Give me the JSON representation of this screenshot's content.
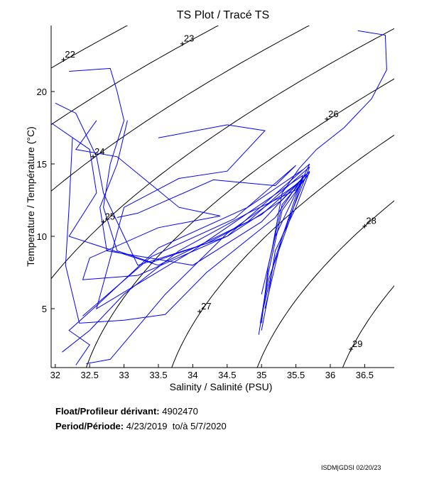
{
  "chart_data": {
    "type": "line",
    "title": "TS Plot / Tracé TS",
    "xlabel": "Salinity / Salinité (PSU)",
    "ylabel": "Temperature / Température (°C)",
    "xlim": [
      31.94,
      36.93
    ],
    "ylim": [
      0.93,
      24.56
    ],
    "xticks": [
      32,
      32.5,
      33,
      33.5,
      34,
      34.5,
      35,
      35.5,
      36,
      36.5
    ],
    "xtick_labels": [
      "32",
      "32.5",
      "33",
      "33.5",
      "34",
      "34.5",
      "35",
      "35.5",
      "36",
      "36.5"
    ],
    "yticks": [
      5,
      10,
      15,
      20
    ],
    "ytick_labels": [
      "5",
      "10",
      "15",
      "20"
    ],
    "grid": false,
    "density_contours": {
      "levels": [
        22,
        23,
        24,
        25,
        26,
        27,
        28,
        29
      ],
      "color": "#000000",
      "labels": [
        {
          "text": "22",
          "S": 32.12,
          "T": 22.2
        },
        {
          "text": "23",
          "S": 33.85,
          "T": 23.3
        },
        {
          "text": "24",
          "S": 32.55,
          "T": 15.5
        },
        {
          "text": "25",
          "S": 32.7,
          "T": 11.0
        },
        {
          "text": "26",
          "S": 35.95,
          "T": 18.1
        },
        {
          "text": "27",
          "S": 34.1,
          "T": 4.8
        },
        {
          "text": "28",
          "S": 36.5,
          "T": 10.7
        },
        {
          "text": "29",
          "S": 36.3,
          "T": 2.2
        }
      ]
    },
    "profile_color": "#0000ff",
    "profiles": [
      [
        [
          32.2,
          21.4
        ],
        [
          32.8,
          21.6
        ],
        [
          32.9,
          20
        ],
        [
          33.0,
          18
        ],
        [
          32.8,
          15
        ],
        [
          32.7,
          12
        ],
        [
          32.9,
          9
        ],
        [
          33.4,
          8.2
        ],
        [
          34.5,
          10
        ],
        [
          35.3,
          12.5
        ],
        [
          35.7,
          14.5
        ],
        [
          35.5,
          12
        ],
        [
          35.2,
          9
        ],
        [
          35.1,
          6
        ],
        [
          35.0,
          3.5
        ]
      ],
      [
        [
          32.0,
          19.2
        ],
        [
          32.3,
          18.5
        ],
        [
          32.6,
          15.5
        ],
        [
          32.7,
          13
        ],
        [
          33,
          10
        ],
        [
          33.2,
          8
        ],
        [
          34.2,
          9.5
        ],
        [
          35,
          11.5
        ],
        [
          35.6,
          14
        ],
        [
          35.4,
          11
        ],
        [
          35.1,
          7
        ],
        [
          34.98,
          4
        ]
      ],
      [
        [
          31.95,
          17.8
        ],
        [
          32.5,
          16
        ],
        [
          32.6,
          13
        ],
        [
          32.2,
          10
        ],
        [
          33.5,
          8
        ],
        [
          34.8,
          11
        ],
        [
          35.7,
          14.8
        ],
        [
          35.3,
          10
        ],
        [
          35.05,
          5
        ]
      ],
      [
        [
          33.5,
          16.8
        ],
        [
          34.5,
          17.7
        ],
        [
          35.05,
          17.3
        ],
        [
          34.5,
          14.5
        ],
        [
          33.8,
          14
        ],
        [
          33,
          12
        ],
        [
          32.6,
          5
        ],
        [
          34,
          9
        ],
        [
          35.6,
          14.2
        ],
        [
          35.2,
          8.5
        ],
        [
          35.0,
          4.5
        ]
      ],
      [
        [
          32.6,
          18
        ],
        [
          32.3,
          16
        ],
        [
          32.9,
          15.5
        ],
        [
          33.8,
          12
        ],
        [
          34.4,
          11.4
        ],
        [
          33.5,
          10.6
        ],
        [
          32.5,
          8.5
        ],
        [
          32.4,
          7
        ],
        [
          33.2,
          7.3
        ],
        [
          34.5,
          10
        ],
        [
          35.7,
          15
        ],
        [
          35.2,
          10
        ],
        [
          35.0,
          6
        ]
      ],
      [
        [
          32.1,
          2
        ],
        [
          32.5,
          3.5
        ],
        [
          33,
          6
        ],
        [
          33.8,
          9
        ],
        [
          34.8,
          11.6
        ],
        [
          35.5,
          13.2
        ],
        [
          35.7,
          14.4
        ],
        [
          35.3,
          11.8
        ],
        [
          35.1,
          7.5
        ],
        [
          34.96,
          3.2
        ]
      ],
      [
        [
          32.45,
          1.2
        ],
        [
          32.8,
          1.5
        ],
        [
          33.6,
          6
        ],
        [
          34.5,
          10.2
        ],
        [
          35.6,
          13.9
        ],
        [
          35.3,
          12.2
        ],
        [
          35.1,
          8
        ],
        [
          35.0,
          4
        ]
      ],
      [
        [
          32.3,
          1.1
        ],
        [
          32.5,
          2.5
        ],
        [
          32.2,
          3.5
        ],
        [
          32.6,
          5.2
        ],
        [
          33.5,
          9.2
        ],
        [
          34.8,
          12
        ],
        [
          35.6,
          14.6
        ]
      ],
      [
        [
          36.4,
          24.2
        ],
        [
          36.8,
          23.9
        ],
        [
          36.82,
          21.5
        ],
        [
          36.6,
          19.5
        ],
        [
          36.2,
          17.5
        ],
        [
          35.8,
          16
        ],
        [
          35.55,
          14.7
        ],
        [
          35.3,
          13
        ],
        [
          35.15,
          9
        ]
      ],
      [
        [
          32.25,
          16.8
        ],
        [
          32.2,
          12
        ],
        [
          32.15,
          8
        ],
        [
          32.35,
          4
        ],
        [
          33.0,
          4.2
        ],
        [
          33.6,
          4.6
        ],
        [
          34.2,
          7.5
        ],
        [
          35.2,
          11.3
        ],
        [
          35.6,
          14.1
        ]
      ],
      [
        [
          33.05,
          18
        ],
        [
          32.9,
          15
        ],
        [
          32.65,
          12
        ],
        [
          32.75,
          9
        ],
        [
          34.0,
          8
        ],
        [
          35.0,
          11
        ],
        [
          35.65,
          14.3
        ]
      ],
      [
        [
          32.4,
          4.5
        ],
        [
          33.4,
          8.6
        ],
        [
          34.6,
          11.2
        ],
        [
          35.5,
          14.9
        ],
        [
          35.2,
          13.5
        ],
        [
          34.3,
          13.9
        ],
        [
          33.2,
          11.6
        ],
        [
          32.9,
          11.3
        ]
      ]
    ]
  },
  "info": {
    "float_label": "Float/Profileur dérivant:",
    "float_value": "4902470",
    "period_label": "Period/Période:",
    "period_start": "4/23/2019",
    "period_sep": "to/à",
    "period_end": "5/7/2020"
  },
  "footer": "ISDM|GDSI 02/20/23"
}
